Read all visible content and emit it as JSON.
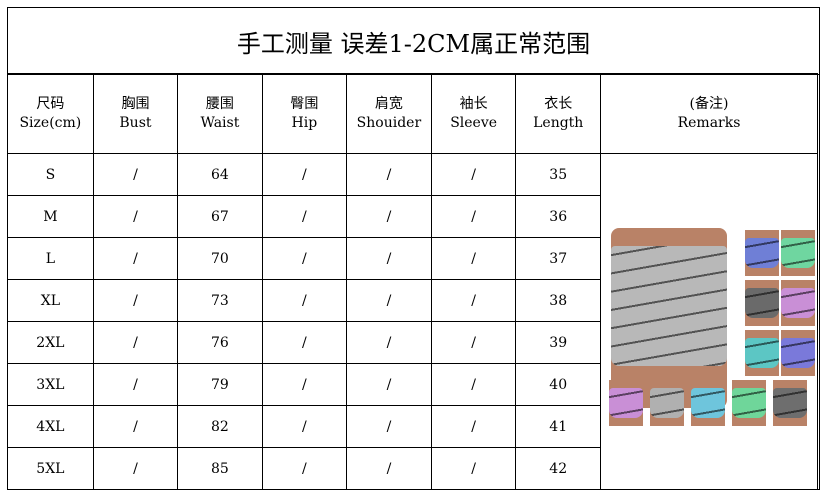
{
  "title": "手工测量 误差1-2CM属正常范围",
  "headers": [
    {
      "cn": "尺码",
      "en": "Size(cm)"
    },
    {
      "cn": "胸围",
      "en": "Bust"
    },
    {
      "cn": "腰围",
      "en": "Waist"
    },
    {
      "cn": "臀围",
      "en": "Hip"
    },
    {
      "cn": "肩宽",
      "en": "Shouider"
    },
    {
      "cn": "袖长",
      "en": "Sleeve"
    },
    {
      "cn": "衣长",
      "en": "Length"
    },
    {
      "cn": "(备注)",
      "en": "Remarks"
    }
  ],
  "rows": [
    [
      "S",
      "/",
      "64",
      "/",
      "/",
      "/",
      "35"
    ],
    [
      "M",
      "/",
      "67",
      "/",
      "/",
      "/",
      "36"
    ],
    [
      "L",
      "/",
      "70",
      "/",
      "/",
      "/",
      "37"
    ],
    [
      "XL",
      "/",
      "73",
      "/",
      "/",
      "/",
      "38"
    ],
    [
      "2XL",
      "/",
      "76",
      "/",
      "/",
      "/",
      "39"
    ],
    [
      "3XL",
      "/",
      "79",
      "/",
      "/",
      "/",
      "40"
    ],
    [
      "4XL",
      "/",
      "82",
      "/",
      "/",
      "/",
      "41"
    ],
    [
      "5XL",
      "/",
      "85",
      "/",
      "/",
      "/",
      "42"
    ]
  ],
  "product_image": {
    "main_color": "#b8b8b8",
    "variant_colors": [
      "#6f7fd6",
      "#6fd6a0",
      "#6a6a6a",
      "#c98fd6",
      "#5cc6c4",
      "#7a79da",
      "#c98fd6",
      "#b0b0b0",
      "#6ec5dc",
      "#6fd69a",
      "#6e6e6e"
    ]
  }
}
